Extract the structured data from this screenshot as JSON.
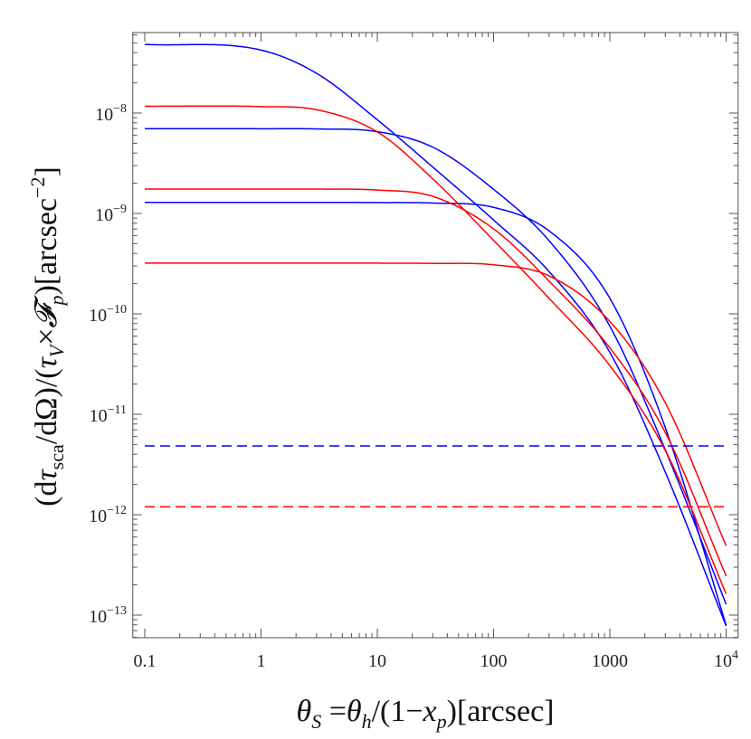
{
  "chart_data": {
    "type": "line",
    "title": "",
    "xlabel": {
      "parts": [
        "θ",
        "S",
        " =",
        "θ",
        "h",
        "/(1−",
        "x",
        "p",
        ")[arcsec]"
      ]
    },
    "ylabel": {
      "parts": [
        "(d",
        "τ",
        "sca",
        "/dΩ)/(",
        "τ",
        "V",
        "×",
        "𝓕",
        "p",
        ")[arcsec",
        "−2",
        "]"
      ]
    },
    "x_scale": "log",
    "y_scale": "log",
    "xlim": [
      0.08,
      12000
    ],
    "ylim": [
      5e-14,
      1e-07
    ],
    "grid": false,
    "x_ticks": [
      {
        "value": 0.1,
        "label": "0.1"
      },
      {
        "value": 1,
        "label": "1"
      },
      {
        "value": 10,
        "label": "10"
      },
      {
        "value": 100,
        "label": "100"
      },
      {
        "value": 1000,
        "label": "1000"
      },
      {
        "value": 10000,
        "label": "10",
        "exp": "4"
      }
    ],
    "y_ticks": [
      {
        "value": 1e-08,
        "label": "10",
        "exp": "−8"
      },
      {
        "value": 1e-09,
        "label": "10",
        "exp": "−9"
      },
      {
        "value": 1e-10,
        "label": "10",
        "exp": "−10"
      },
      {
        "value": 1e-11,
        "label": "10",
        "exp": "−11"
      },
      {
        "value": 1e-12,
        "label": "10",
        "exp": "−12"
      },
      {
        "value": 1e-13,
        "label": "10",
        "exp": "−13"
      }
    ],
    "x": [
      0.1,
      1,
      3,
      10,
      30,
      100,
      300,
      1000,
      3000,
      10000
    ],
    "series": [
      {
        "color": "#0000ff",
        "style": "solid",
        "values": [
          4.83e-08,
          4.24e-08,
          2.49e-08,
          8.57e-09,
          2.9e-09,
          8.61e-10,
          2.64e-10,
          4.13e-11,
          2.65e-12,
          7.8e-14
        ]
      },
      {
        "color": "#0000ff",
        "style": "solid",
        "values": [
          7e-09,
          6.98e-09,
          6.95e-09,
          6.53e-09,
          4.57e-09,
          1.74e-09,
          5.36e-10,
          7.53e-11,
          4.41e-12,
          1.28e-13
        ]
      },
      {
        "color": "#0000ff",
        "style": "solid",
        "values": [
          1.29e-09,
          1.29e-09,
          1.29e-09,
          1.285e-09,
          1.27e-09,
          1.15e-09,
          6.71e-10,
          1.43e-10,
          7.35e-12,
          7.94e-14
        ]
      },
      {
        "color": "#ff0000",
        "style": "solid",
        "values": [
          1.17e-08,
          1.16e-08,
          1.08e-08,
          6.49e-09,
          2.21e-09,
          5.4e-10,
          1.43e-10,
          3.05e-11,
          4.36e-12,
          1.63e-13
        ]
      },
      {
        "color": "#ff0000",
        "style": "solid",
        "values": [
          1.75e-09,
          1.75e-09,
          1.75e-09,
          1.71e-09,
          1.48e-09,
          7.03e-10,
          2.12e-10,
          4.58e-11,
          6.58e-12,
          2.45e-13
        ]
      },
      {
        "color": "#ff0000",
        "style": "solid",
        "values": [
          3.2e-10,
          3.2e-10,
          3.2e-10,
          3.2e-10,
          3.18e-10,
          3.08e-10,
          2.39e-10,
          8.41e-11,
          1.3e-11,
          4.9e-13
        ]
      },
      {
        "color": "#0000ff",
        "style": "dashed",
        "x": [
          0.1,
          10000
        ],
        "values": [
          4.84e-12,
          4.84e-12
        ]
      },
      {
        "color": "#ff0000",
        "style": "dashed",
        "x": [
          0.1,
          10000
        ],
        "values": [
          1.2e-12,
          1.2e-12
        ]
      }
    ]
  }
}
